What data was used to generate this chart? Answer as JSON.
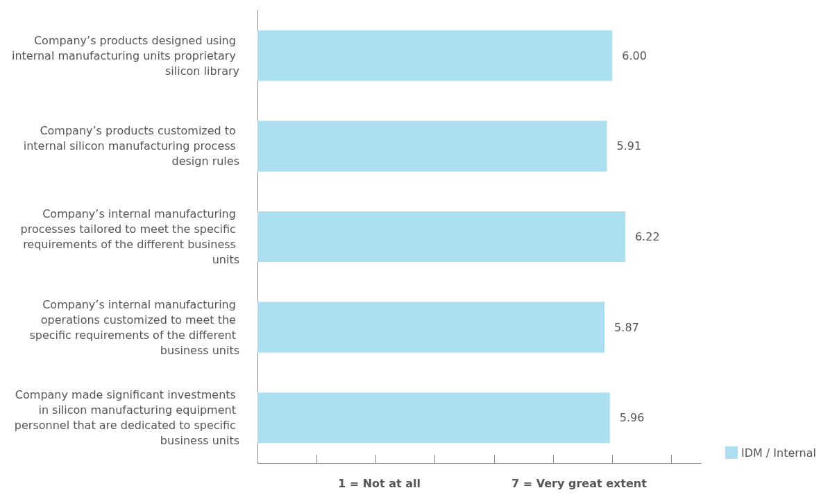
{
  "chart_data": {
    "type": "bar",
    "orientation": "horizontal",
    "categories": [
      "Company’s products designed using internal manufacturing units proprietary silicon library",
      "Company’s products customized to internal silicon manufacturing process design rules",
      "Company’s internal manufacturing processes tailored to meet the specific requirements of the different business units",
      "Company’s internal manufacturing operations customized to meet the specific requirements of the different business units",
      "Company made significant investments in silicon manufacturing equipment personnel that are dedicated to specific business units"
    ],
    "series": [
      {
        "name": "IDM / Internal",
        "color": "#acdff0",
        "values": [
          6.0,
          5.91,
          6.22,
          5.87,
          5.96
        ],
        "value_labels": [
          "6.00",
          "5.91",
          "6.22",
          "5.87",
          "5.96"
        ]
      }
    ],
    "xlim": [
      0,
      7.5
    ],
    "xticks": [
      {
        "value": 0,
        "label": null
      },
      {
        "value": 1,
        "label": null
      },
      {
        "value": 2,
        "label": null
      },
      {
        "value": 3,
        "label": null
      },
      {
        "value": 4,
        "label": null
      },
      {
        "value": 5,
        "label": null
      },
      {
        "value": 6,
        "label": null
      },
      {
        "value": 7,
        "label": null
      }
    ],
    "tick_labels": "y",
    "grid": false,
    "legend": "bottom right",
    "annotations": [
      "1 = Not at all",
      "7 = Very great extent"
    ]
  }
}
